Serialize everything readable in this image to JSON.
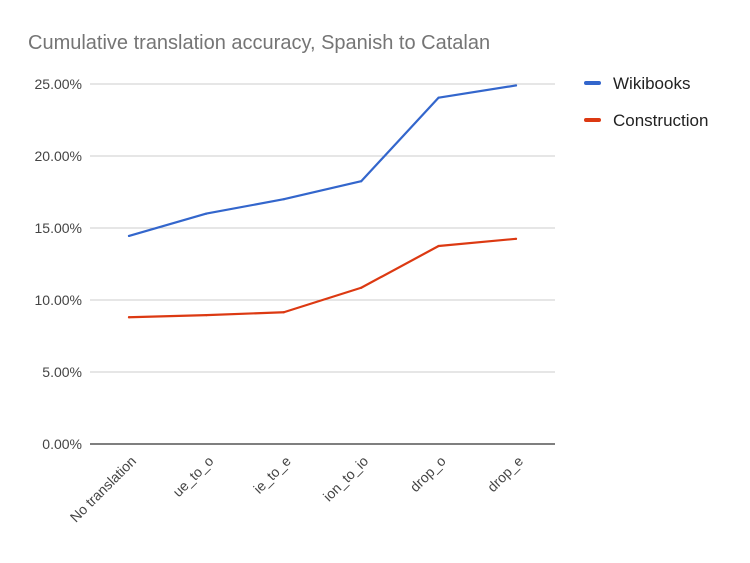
{
  "chart_data": {
    "type": "line",
    "title": "Cumulative translation accuracy, Spanish to Catalan",
    "xlabel": "",
    "ylabel": "",
    "categories": [
      "No translation",
      "ue_to_o",
      "ie_to_e",
      "ion_to_io",
      "drop_o",
      "drop_e"
    ],
    "y_ticks": [
      "0.00%",
      "5.00%",
      "10.00%",
      "15.00%",
      "20.00%",
      "25.00%"
    ],
    "ylim": [
      0,
      25
    ],
    "grid": true,
    "legend_position": "right",
    "series": [
      {
        "name": "Wikibooks",
        "color": "#3366cc",
        "values": [
          14.45,
          16.0,
          17.0,
          18.25,
          24.05,
          24.9
        ]
      },
      {
        "name": "Construction",
        "color": "#dc3912",
        "values": [
          8.8,
          8.95,
          9.15,
          10.85,
          13.75,
          14.25
        ]
      }
    ]
  }
}
